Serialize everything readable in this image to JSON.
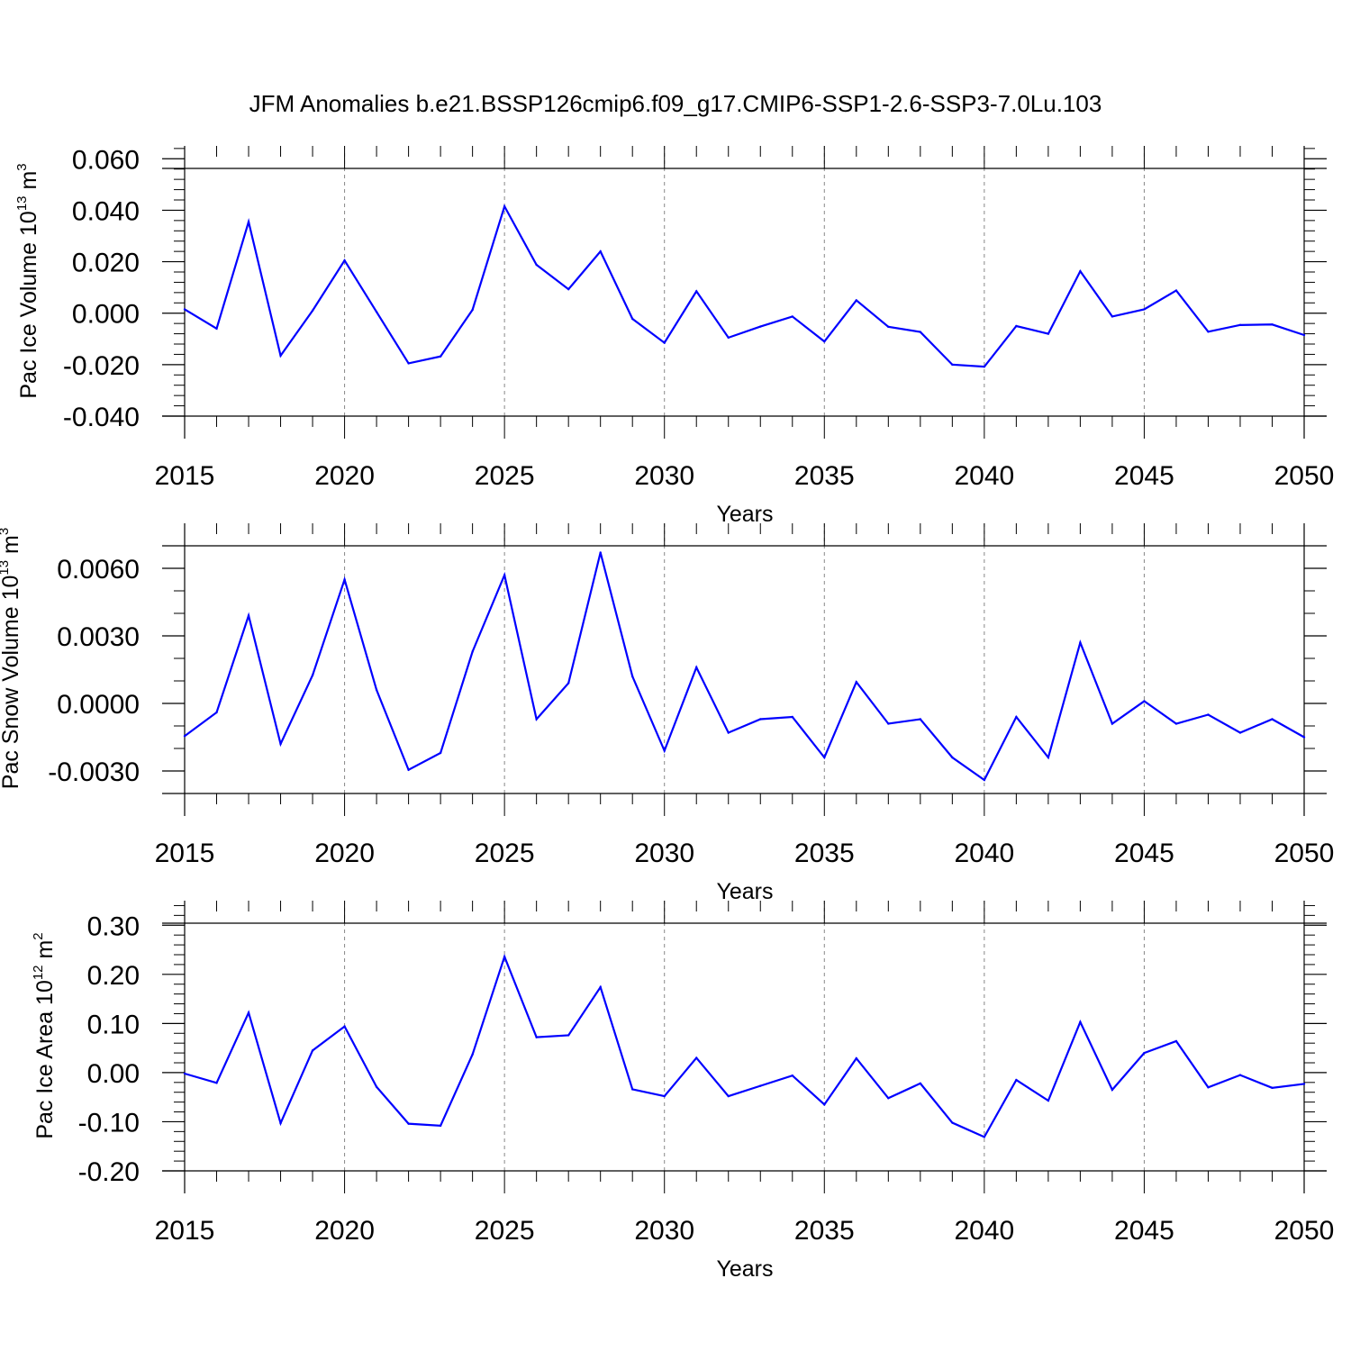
{
  "title": "JFM Anomalies b.e21.BSSP126cmip6.f09_g17.CMIP6-SSP1-2.6-SSP3-7.0Lu.103",
  "chart_data": [
    {
      "type": "line",
      "ylabel": {
        "text": "Pac Ice Volume 10",
        "sup": "13",
        "unit": " m",
        "unit_sup": "3"
      },
      "xlabel": "Years",
      "xlim": [
        2015,
        2050
      ],
      "ylim": [
        -0.04,
        0.065
      ],
      "y_ticks": [
        -0.04,
        -0.02,
        0.0,
        0.02,
        0.04,
        0.06
      ],
      "y_tick_labels": [
        "-0.040",
        "-0.020",
        "0.000",
        "0.020",
        "0.040",
        "0.060"
      ],
      "y_minor_step": 0.004,
      "x_ticks": [
        2015,
        2020,
        2025,
        2030,
        2035,
        2040,
        2045,
        2050
      ],
      "x_tick_labels": [
        "2015",
        "2020",
        "2025",
        "2030",
        "2035",
        "2040",
        "2045",
        "2050"
      ],
      "grid": "vertical-dashed",
      "color": "#0000ff",
      "x": [
        2015,
        2016,
        2017,
        2018,
        2019,
        2020,
        2021,
        2022,
        2023,
        2024,
        2025,
        2026,
        2027,
        2028,
        2029,
        2030,
        2031,
        2032,
        2033,
        2034,
        2035,
        2036,
        2037,
        2038,
        2039,
        2040,
        2041,
        2042,
        2043,
        2044,
        2045,
        2046,
        2047,
        2048,
        2049,
        2050
      ],
      "values": [
        0.0015,
        -0.006,
        0.0355,
        -0.0165,
        0.001,
        0.0205,
        0.0005,
        -0.0195,
        -0.0168,
        0.0013,
        0.0415,
        0.0188,
        0.0093,
        0.024,
        -0.0022,
        -0.0115,
        0.0085,
        -0.0095,
        -0.0052,
        -0.0013,
        -0.011,
        0.005,
        -0.0053,
        -0.0073,
        -0.02,
        -0.0208,
        -0.005,
        -0.008,
        0.0163,
        -0.0013,
        0.0015,
        0.0088,
        -0.0072,
        -0.0046,
        -0.0044,
        -0.0085
      ]
    },
    {
      "type": "line",
      "ylabel": {
        "text": "Pac Snow Volume 10",
        "sup": "13",
        "unit": " m",
        "unit_sup": "3"
      },
      "xlabel": "Years",
      "xlim": [
        2015,
        2050
      ],
      "ylim": [
        -0.004,
        0.008
      ],
      "y_ticks": [
        -0.003,
        0.0,
        0.003,
        0.006
      ],
      "y_tick_labels": [
        "-0.0030",
        "0.0000",
        "0.0030",
        "0.0060"
      ],
      "y_minor_step": 0.001,
      "x_ticks": [
        2015,
        2020,
        2025,
        2030,
        2035,
        2040,
        2045,
        2050
      ],
      "x_tick_labels": [
        "2015",
        "2020",
        "2025",
        "2030",
        "2035",
        "2040",
        "2045",
        "2050"
      ],
      "grid": "vertical-dashed",
      "color": "#0000ff",
      "x": [
        2015,
        2016,
        2017,
        2018,
        2019,
        2020,
        2021,
        2022,
        2023,
        2024,
        2025,
        2026,
        2027,
        2028,
        2029,
        2030,
        2031,
        2032,
        2033,
        2034,
        2035,
        2036,
        2037,
        2038,
        2039,
        2040,
        2041,
        2042,
        2043,
        2044,
        2045,
        2046,
        2047,
        2048,
        2049,
        2050
      ],
      "values": [
        -0.00145,
        -0.0004,
        0.0039,
        -0.0018,
        0.00125,
        0.0055,
        0.0006,
        -0.00295,
        -0.0022,
        0.0023,
        0.0057,
        -0.0007,
        0.0009,
        0.0067,
        0.0012,
        -0.0021,
        0.0016,
        -0.0013,
        -0.0007,
        -0.0006,
        -0.0024,
        0.00095,
        -0.0009,
        -0.0007,
        -0.0024,
        -0.0034,
        -0.0006,
        -0.0024,
        0.0027,
        -0.0009,
        0.0001,
        -0.0009,
        -0.0005,
        -0.0013,
        -0.0007,
        -0.0015
      ]
    },
    {
      "type": "line",
      "ylabel": {
        "text": "Pac Ice Area 10",
        "sup": "12",
        "unit": " m",
        "unit_sup": "2"
      },
      "xlabel": "Years",
      "xlim": [
        2015,
        2050
      ],
      "ylim": [
        -0.2,
        0.35
      ],
      "y_ticks": [
        -0.2,
        -0.1,
        0.0,
        0.1,
        0.2,
        0.3
      ],
      "y_tick_labels": [
        "-0.20",
        "-0.10",
        "0.00",
        "0.10",
        "0.20",
        "0.30"
      ],
      "y_minor_step": 0.02,
      "x_ticks": [
        2015,
        2020,
        2025,
        2030,
        2035,
        2040,
        2045,
        2050
      ],
      "x_tick_labels": [
        "2015",
        "2020",
        "2025",
        "2030",
        "2035",
        "2040",
        "2045",
        "2050"
      ],
      "grid": "vertical-dashed",
      "color": "#0000ff",
      "x": [
        2015,
        2016,
        2017,
        2018,
        2019,
        2020,
        2021,
        2022,
        2023,
        2024,
        2025,
        2026,
        2027,
        2028,
        2029,
        2030,
        2031,
        2032,
        2033,
        2034,
        2035,
        2036,
        2037,
        2038,
        2039,
        2040,
        2041,
        2042,
        2043,
        2044,
        2045,
        2046,
        2047,
        2048,
        2049,
        2050
      ],
      "values": [
        -0.002,
        -0.021,
        0.122,
        -0.103,
        0.045,
        0.094,
        -0.029,
        -0.104,
        -0.108,
        0.037,
        0.236,
        0.072,
        0.076,
        0.174,
        -0.034,
        -0.048,
        0.03,
        -0.048,
        -0.027,
        -0.006,
        -0.065,
        0.029,
        -0.052,
        -0.022,
        -0.102,
        -0.131,
        -0.015,
        -0.057,
        0.103,
        -0.035,
        0.04,
        0.064,
        -0.03,
        -0.005,
        -0.031,
        -0.023
      ]
    }
  ]
}
